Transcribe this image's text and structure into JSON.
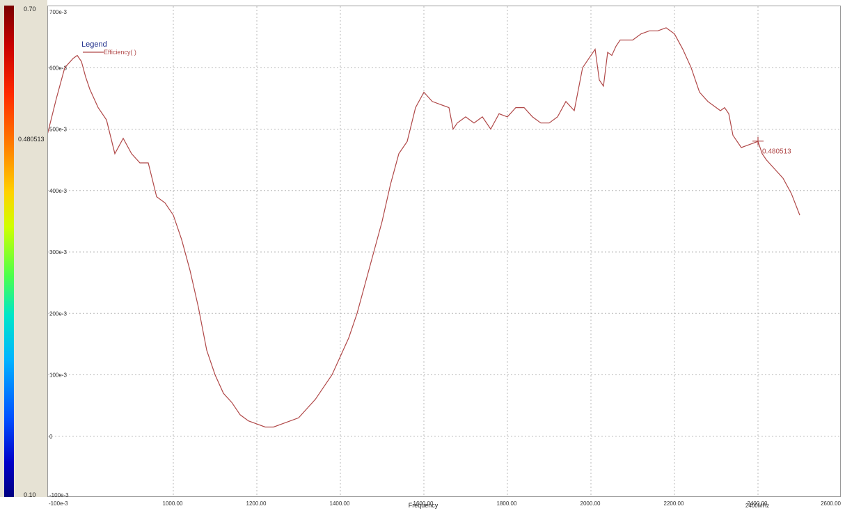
{
  "colorbar": {
    "top_label": "0.70",
    "marker_label": "0.480513",
    "bottom_label": "0.10",
    "top_color": "#7a0000",
    "bottom_color": "#000080"
  },
  "chart_data": {
    "type": "line",
    "title": "",
    "xlabel": "Frequency",
    "ylabel": "",
    "xlim": [
      700,
      2600
    ],
    "ylim": [
      -0.1,
      0.7
    ],
    "grid": true,
    "x_ticks": [
      "1000.00",
      "1200.00",
      "1400.00",
      "1600.00",
      "1800.00",
      "2000.00",
      "2200.00",
      "2400.00",
      "2600.00"
    ],
    "x_tick_values": [
      1000,
      1200,
      1400,
      1600,
      1800,
      2000,
      2200,
      2400,
      2600
    ],
    "y_ticks": [
      "-100e-3",
      "0",
      "100e-3",
      "200e-3",
      "300e-3",
      "400e-3",
      "500e-3",
      "600e-3",
      "700e-3"
    ],
    "y_tick_values": [
      -0.1,
      0,
      0.1,
      0.2,
      0.3,
      0.4,
      0.5,
      0.6,
      0.7
    ],
    "legend": {
      "title": "Legend",
      "position": "top-left"
    },
    "series": [
      {
        "name": "Efficiency( )",
        "color": "#b04848",
        "x": [
          698,
          720,
          740,
          760,
          770,
          780,
          790,
          800,
          820,
          840,
          860,
          880,
          900,
          920,
          940,
          960,
          980,
          1000,
          1020,
          1040,
          1060,
          1080,
          1100,
          1120,
          1140,
          1160,
          1180,
          1200,
          1220,
          1240,
          1260,
          1280,
          1300,
          1320,
          1340,
          1360,
          1380,
          1400,
          1420,
          1440,
          1460,
          1480,
          1500,
          1520,
          1540,
          1560,
          1580,
          1600,
          1620,
          1640,
          1660,
          1670,
          1680,
          1700,
          1720,
          1740,
          1760,
          1780,
          1800,
          1820,
          1840,
          1860,
          1880,
          1900,
          1920,
          1940,
          1960,
          1980,
          2000,
          2010,
          2020,
          2030,
          2040,
          2050,
          2060,
          2070,
          2080,
          2100,
          2120,
          2140,
          2160,
          2180,
          2200,
          2220,
          2240,
          2260,
          2280,
          2300,
          2310,
          2320,
          2330,
          2340,
          2360,
          2380,
          2400,
          2410,
          2420,
          2440,
          2460,
          2480,
          2500
        ],
        "y": [
          0.49,
          0.55,
          0.6,
          0.615,
          0.62,
          0.61,
          0.585,
          0.565,
          0.535,
          0.515,
          0.46,
          0.485,
          0.46,
          0.445,
          0.445,
          0.39,
          0.38,
          0.36,
          0.32,
          0.27,
          0.21,
          0.14,
          0.1,
          0.07,
          0.055,
          0.035,
          0.025,
          0.02,
          0.015,
          0.015,
          0.02,
          0.025,
          0.03,
          0.045,
          0.06,
          0.08,
          0.1,
          0.13,
          0.16,
          0.2,
          0.25,
          0.3,
          0.35,
          0.41,
          0.46,
          0.48,
          0.535,
          0.56,
          0.545,
          0.54,
          0.535,
          0.5,
          0.51,
          0.52,
          0.51,
          0.52,
          0.5,
          0.525,
          0.52,
          0.535,
          0.535,
          0.52,
          0.51,
          0.51,
          0.52,
          0.545,
          0.53,
          0.6,
          0.62,
          0.63,
          0.58,
          0.57,
          0.625,
          0.62,
          0.635,
          0.645,
          0.645,
          0.645,
          0.655,
          0.66,
          0.66,
          0.665,
          0.655,
          0.63,
          0.6,
          0.56,
          0.545,
          0.535,
          0.53,
          0.535,
          0.525,
          0.49,
          0.47,
          0.475,
          0.48,
          0.46,
          0.45,
          0.435,
          0.42,
          0.395,
          0.36
        ]
      }
    ],
    "marker": {
      "x": 2400,
      "y": 0.480513,
      "label": "0.480513"
    },
    "extra_x_label": "2400MHz"
  }
}
